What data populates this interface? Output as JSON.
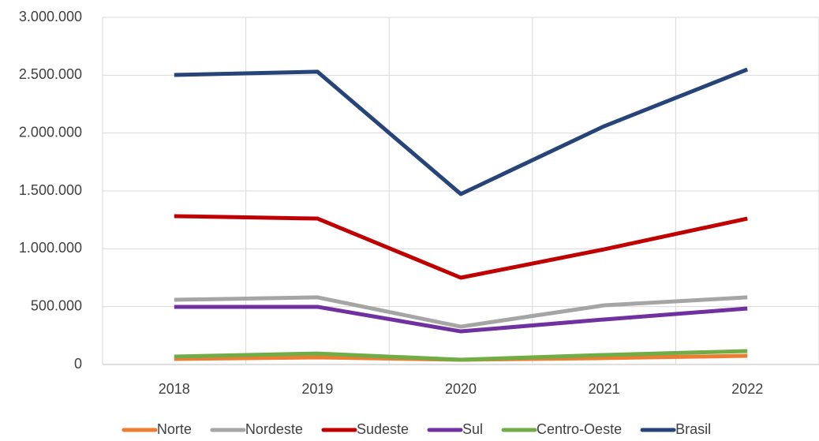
{
  "chart_data": {
    "type": "line",
    "categories": [
      "2018",
      "2019",
      "2020",
      "2021",
      "2022"
    ],
    "series": [
      {
        "name": "Norte",
        "color": "#ed7d31",
        "values": [
          48000,
          61000,
          41000,
          55000,
          75000
        ]
      },
      {
        "name": "Nordeste",
        "color": "#a5a5a5",
        "values": [
          559000,
          580000,
          327000,
          511000,
          580000
        ]
      },
      {
        "name": "Sudeste",
        "color": "#c00000",
        "values": [
          1282000,
          1261000,
          750000,
          995000,
          1261000
        ]
      },
      {
        "name": "Sul",
        "color": "#7030a0",
        "values": [
          498000,
          498000,
          286000,
          389000,
          484000
        ]
      },
      {
        "name": "Centro-Oeste",
        "color": "#70ad47",
        "values": [
          68000,
          95000,
          41000,
          82000,
          116000
        ]
      },
      {
        "name": "Brasil",
        "color": "#264478",
        "values": [
          2502000,
          2530000,
          1473000,
          2059000,
          2550000
        ]
      }
    ],
    "ylim": [
      0,
      3000000
    ],
    "yticks": [
      0,
      {
        "value": 500000,
        "label": "500.000"
      },
      {
        "value": 1000000,
        "label": "1.000.000"
      },
      {
        "value": 1500000,
        "label": "1.500.000"
      },
      {
        "value": 2000000,
        "label": "2.000.000"
      },
      {
        "value": 2500000,
        "label": "2.500.000"
      },
      {
        "value": 3000000,
        "label": "3.000.000"
      }
    ],
    "grid": true,
    "legend": "bottom"
  }
}
